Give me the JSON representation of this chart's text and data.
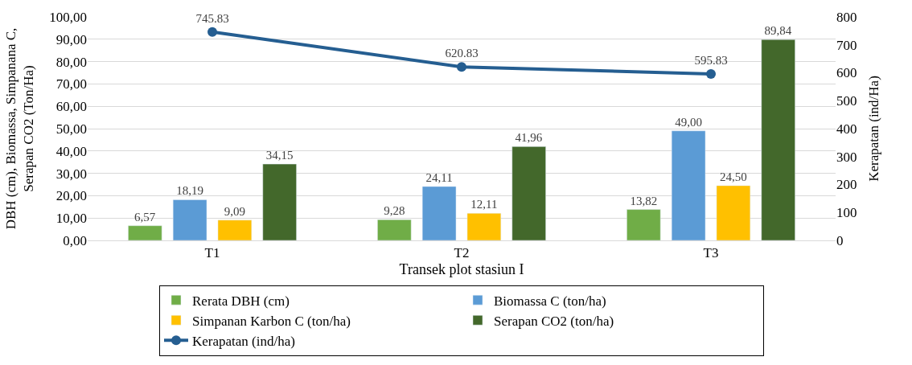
{
  "chart_data": {
    "type": "bar",
    "xlabel": "Transek plot stasiun I",
    "ylabel": "DBH (cm), Biomassa, Simpanana C,\nSerapan CO2 (Ton/Ha)",
    "y2label": "Kerapatan (ind/Ha)",
    "categories": [
      "T1",
      "T2",
      "T3"
    ],
    "series": [
      {
        "name": "Rerata DBH (cm)",
        "color": "#70ad47",
        "values": [
          6.57,
          9.28,
          13.82
        ],
        "value_labels": [
          "6,57",
          "9,28",
          "13,82"
        ]
      },
      {
        "name": "Biomassa C (ton/ha)",
        "color": "#5b9bd5",
        "values": [
          18.19,
          24.11,
          49.0
        ],
        "value_labels": [
          "18,19",
          "24,11",
          "49,00"
        ]
      },
      {
        "name": "Simpanan Karbon C (ton/ha)",
        "color": "#ffc000",
        "values": [
          9.09,
          12.11,
          24.5
        ],
        "value_labels": [
          "9,09",
          "12,11",
          "24,50"
        ]
      },
      {
        "name": "Serapan CO2 (ton/ha)",
        "color": "#43682b",
        "values": [
          34.15,
          41.96,
          89.84
        ],
        "value_labels": [
          "34,15",
          "41,96",
          "89,84"
        ]
      },
      {
        "name": "Kerapatan (ind/ha)",
        "type": "line",
        "axis": "y2",
        "color": "#255e91",
        "marker": "circle",
        "values": [
          745.83,
          620.83,
          595.83
        ],
        "value_labels": [
          "745.83",
          "620.83",
          "595.83"
        ]
      }
    ],
    "ylim": [
      0,
      100
    ],
    "yticks": [
      {
        "value": 0,
        "label": "0,00"
      },
      {
        "value": 10,
        "label": "10,00"
      },
      {
        "value": 20,
        "label": "20,00"
      },
      {
        "value": 30,
        "label": "30,00"
      },
      {
        "value": 40,
        "label": "40,00"
      },
      {
        "value": 50,
        "label": "50,00"
      },
      {
        "value": 60,
        "label": "60,00"
      },
      {
        "value": 70,
        "label": "70,00"
      },
      {
        "value": 80,
        "label": "80,00"
      },
      {
        "value": 90,
        "label": "90,00"
      },
      {
        "value": 100,
        "label": "100,00"
      }
    ],
    "y2lim": [
      0,
      800
    ],
    "y2ticks": [
      0,
      100,
      200,
      300,
      400,
      500,
      600,
      700,
      800
    ],
    "grid": "y",
    "legend": "bottom"
  }
}
